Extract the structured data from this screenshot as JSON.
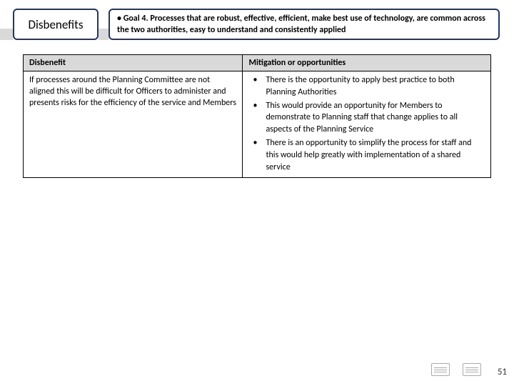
{
  "header": {
    "title": "Disbenefits",
    "goal_text": "• Goal 4. Processes that are robust, effective, efficient, make best use of technology, are common across the two authorities, easy to understand and consistently applied"
  },
  "table": {
    "headers": {
      "left": "Disbenefit",
      "right": "Mitigation or opportunities"
    },
    "row": {
      "disbenefit": "If processes around the Planning Committee are not aligned this will be difficult for Officers to administer and presents risks for the efficiency of the service and Members",
      "mitigations": [
        "There is the opportunity to apply best practice to both Planning Authorities",
        "This would provide an opportunity for Members to demonstrate to Planning staff that change applies to all aspects of the Planning Service",
        "There is an opportunity to simplify the process for staff and this would help greatly with implementation of a shared service"
      ]
    }
  },
  "footer": {
    "page_number": "51"
  },
  "colors": {
    "border_navy": "#1f3864",
    "header_grey": "#d9d9d9"
  }
}
